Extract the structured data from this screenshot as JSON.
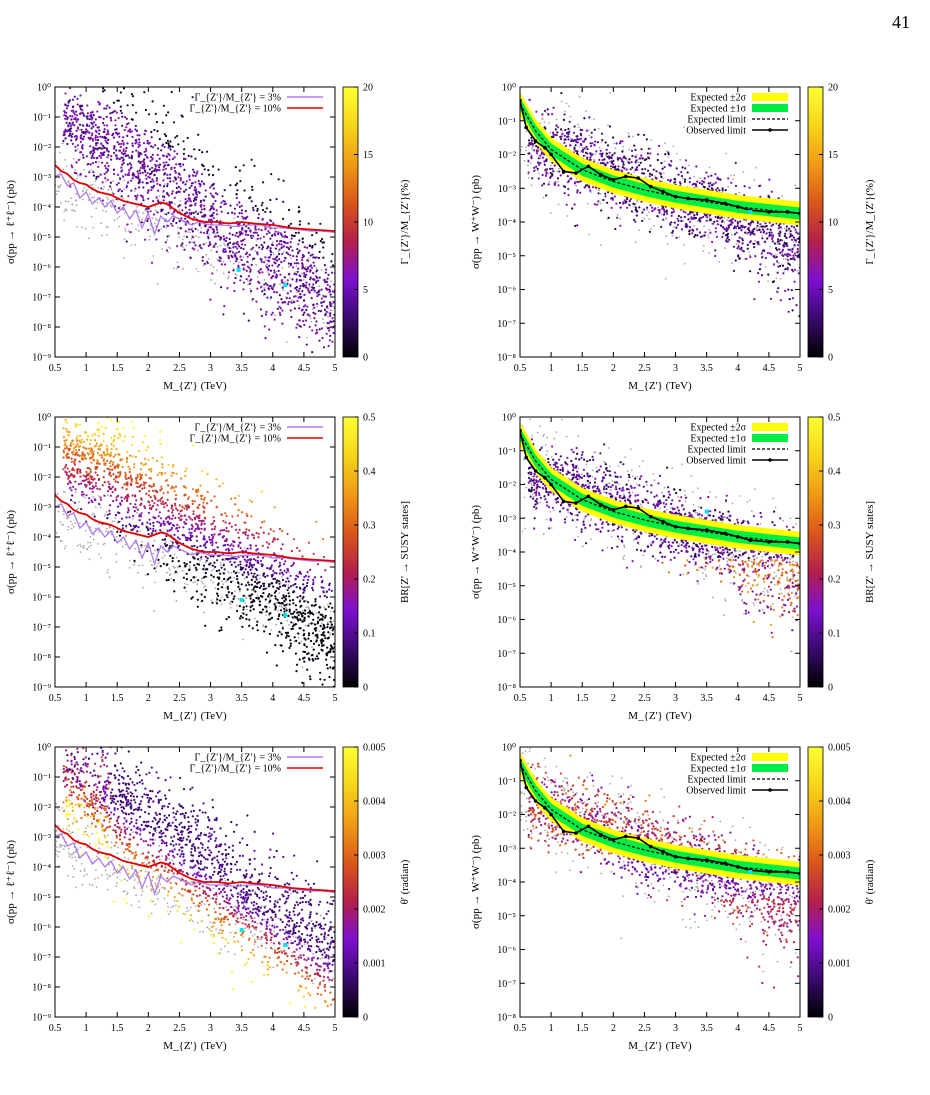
{
  "page": {
    "number": "41"
  },
  "colors": {
    "palette": [
      "#000000",
      "#3a0a6e",
      "#7d10d0",
      "#b4204a",
      "#d9571a",
      "#f09a16",
      "#f6d51b",
      "#ffff33"
    ],
    "grey": "#aaaaaa",
    "lilac": "#b07aef",
    "red": "#e00000",
    "yellow": "#ffff00",
    "green": "#00ee44",
    "cyan": "#00e5ee",
    "black": "#000000"
  },
  "chart_data": [
    {
      "id": "ll-width",
      "type": "scatter",
      "xlabel": "M_{Z'} (TeV)",
      "ylabel": "σ(pp → ℓ⁺ℓ⁻) (pb)",
      "xlim": [
        0.5,
        5
      ],
      "ylim_log10": [
        -9,
        0
      ],
      "xticks": [
        "0.5",
        "1",
        "1.5",
        "2",
        "2.5",
        "3",
        "3.5",
        "4",
        "4.5",
        "5"
      ],
      "yticks": [
        "10⁻⁹",
        "10⁻⁸",
        "10⁻⁷",
        "10⁻⁶",
        "10⁻⁵",
        "10⁻⁴",
        "10⁻³",
        "10⁻²",
        "10⁻¹",
        "10⁰"
      ],
      "colorbar": {
        "label": "Γ_{Z'}/M_{Z'}(%)",
        "ticks": [
          "0",
          "5",
          "10",
          "15",
          "20"
        ],
        "range": [
          0,
          20
        ]
      },
      "scatter_mode": "width_ll",
      "legend": [
        {
          "label": "Γ_{Z'}/M_{Z'} = 3%",
          "color": "#b07aef",
          "kind": "line"
        },
        {
          "label": "Γ_{Z'}/M_{Z'} = 10%",
          "color": "#e00000",
          "kind": "line"
        }
      ],
      "series": [
        {
          "name": "Γ_{Z'}/M_{Z'} = 3%",
          "color": "#b07aef",
          "x": [
            0.5,
            0.6,
            0.7,
            0.8,
            0.9,
            1.0,
            1.1,
            1.2,
            1.3,
            1.4,
            1.5,
            1.6,
            1.7,
            1.8,
            1.9,
            2.0,
            2.1,
            2.2,
            2.3,
            2.4,
            2.5,
            2.6,
            2.7,
            2.8,
            3.0,
            3.2,
            3.4,
            3.6,
            3.8,
            4.0,
            4.2,
            4.4,
            4.6,
            4.8,
            5.0
          ],
          "log10y": [
            -3.0,
            -2.9,
            -3.3,
            -3.2,
            -3.7,
            -3.5,
            -3.9,
            -3.7,
            -4.0,
            -3.8,
            -4.2,
            -4.0,
            -4.4,
            -4.1,
            -4.7,
            -4.2,
            -4.9,
            -4.3,
            -4.5,
            -4.3,
            -4.4,
            -4.5,
            -4.6,
            -4.5,
            -4.6,
            -4.6,
            -4.65,
            -4.6,
            -4.6,
            -4.7,
            -4.7,
            -4.75,
            -4.8,
            -4.8,
            -4.85
          ]
        },
        {
          "name": "Γ_{Z'}/M_{Z'} = 10%",
          "color": "#e00000",
          "x": [
            0.5,
            0.6,
            0.7,
            0.8,
            0.9,
            1.0,
            1.1,
            1.2,
            1.4,
            1.6,
            1.8,
            2.0,
            2.2,
            2.3,
            2.5,
            2.7,
            2.9,
            3.1,
            3.3,
            3.5,
            3.7,
            4.0,
            4.3,
            4.6,
            5.0
          ],
          "log10y": [
            -2.6,
            -2.8,
            -2.9,
            -3.1,
            -3.2,
            -3.25,
            -3.4,
            -3.5,
            -3.6,
            -3.8,
            -3.9,
            -4.0,
            -3.85,
            -3.9,
            -4.2,
            -4.4,
            -4.5,
            -4.5,
            -4.55,
            -4.5,
            -4.55,
            -4.6,
            -4.7,
            -4.75,
            -4.8
          ]
        }
      ],
      "markers": [
        {
          "x": 3.45,
          "log10y": -6.1
        },
        {
          "x": 4.2,
          "log10y": -6.6
        }
      ]
    },
    {
      "id": "ww-width",
      "type": "scatter",
      "xlabel": "M_{Z'} (TeV)",
      "ylabel": "σ(pp → W⁺W⁻) (pb)",
      "xlim": [
        0.5,
        5
      ],
      "ylim_log10": [
        -8,
        0
      ],
      "xticks": [
        "0.5",
        "1",
        "1.5",
        "2",
        "2.5",
        "3",
        "3.5",
        "4",
        "4.5",
        "5"
      ],
      "yticks": [
        "10⁻⁸",
        "10⁻⁷",
        "10⁻⁶",
        "10⁻⁵",
        "10⁻⁴",
        "10⁻³",
        "10⁻²",
        "10⁻¹",
        "10⁰"
      ],
      "colorbar": {
        "label": "Γ_{Z'}/M_{Z'}(%)",
        "ticks": [
          "0",
          "5",
          "10",
          "15",
          "20"
        ],
        "range": [
          0,
          20
        ]
      },
      "scatter_mode": "width_ww",
      "legend": [
        {
          "label": "Expected ±2σ",
          "color": "#ffff00",
          "kind": "box"
        },
        {
          "label": "Expected ±1σ",
          "color": "#00ee44",
          "kind": "box"
        },
        {
          "label": "Expected limit",
          "color": "#000000",
          "kind": "dash"
        },
        {
          "label": "Observed limit",
          "color": "#000000",
          "kind": "obs"
        }
      ],
      "observed": {
        "x": [
          0.5,
          0.6,
          0.75,
          0.9,
          1.0,
          1.2,
          1.4,
          1.6,
          1.8,
          2.0,
          2.2,
          2.4,
          2.6,
          2.8,
          3.0,
          3.2,
          3.5,
          3.8,
          4.0,
          4.2,
          4.5,
          4.8,
          5.0
        ],
        "log10y": [
          -0.4,
          -1.2,
          -1.6,
          -1.8,
          -2.0,
          -2.5,
          -2.55,
          -2.35,
          -2.6,
          -2.75,
          -2.65,
          -2.7,
          -2.95,
          -3.1,
          -3.25,
          -3.3,
          -3.35,
          -3.45,
          -3.55,
          -3.65,
          -3.7,
          -3.7,
          -3.75
        ]
      },
      "expected": {
        "x": [
          0.5,
          0.75,
          1.0,
          1.5,
          2.0,
          2.5,
          3.0,
          3.5,
          4.0,
          4.5,
          5.0
        ],
        "log10y": [
          -0.5,
          -1.3,
          -1.85,
          -2.45,
          -2.8,
          -3.05,
          -3.25,
          -3.4,
          -3.55,
          -3.65,
          -3.75
        ]
      },
      "markers": [
        {
          "x": 4.2,
          "log10y": -3.7
        }
      ]
    },
    {
      "id": "ll-br",
      "type": "scatter",
      "xlabel": "M_{Z'} (TeV)",
      "ylabel": "σ(pp → ℓ⁺ℓ⁻) (pb)",
      "xlim": [
        0.5,
        5
      ],
      "ylim_log10": [
        -9,
        0
      ],
      "xticks": [
        "0.5",
        "1",
        "1.5",
        "2",
        "2.5",
        "3",
        "3.5",
        "4",
        "4.5",
        "5"
      ],
      "yticks": [
        "10⁻⁹",
        "10⁻⁸",
        "10⁻⁷",
        "10⁻⁶",
        "10⁻⁵",
        "10⁻⁴",
        "10⁻³",
        "10⁻²",
        "10⁻¹",
        "10⁰"
      ],
      "colorbar": {
        "label": "BR[Z' → SUSY states]",
        "ticks": [
          "0",
          "0.1",
          "0.2",
          "0.3",
          "0.4",
          "0.5"
        ],
        "range": [
          0,
          0.5
        ]
      },
      "scatter_mode": "br_ll",
      "legend": [
        {
          "label": "Γ_{Z'}/M_{Z'} = 3%",
          "color": "#b07aef",
          "kind": "line"
        },
        {
          "label": "Γ_{Z'}/M_{Z'} = 10%",
          "color": "#e00000",
          "kind": "line"
        }
      ],
      "series": [
        {
          "name": "Γ_{Z'}/M_{Z'} = 3%",
          "color": "#b07aef",
          "x": [
            0.5,
            0.6,
            0.7,
            0.8,
            0.9,
            1.0,
            1.1,
            1.2,
            1.3,
            1.4,
            1.5,
            1.6,
            1.7,
            1.8,
            1.9,
            2.0,
            2.1,
            2.2,
            2.3,
            2.4,
            2.5,
            2.6,
            2.7,
            2.8,
            3.0,
            3.2,
            3.4,
            3.6,
            3.8,
            4.0,
            4.2,
            4.4,
            4.6,
            4.8,
            5.0
          ],
          "log10y": [
            -3.0,
            -2.9,
            -3.3,
            -3.2,
            -3.7,
            -3.5,
            -3.9,
            -3.7,
            -4.0,
            -3.8,
            -4.2,
            -4.0,
            -4.4,
            -4.1,
            -4.7,
            -4.2,
            -4.9,
            -4.3,
            -4.5,
            -4.3,
            -4.4,
            -4.5,
            -4.6,
            -4.5,
            -4.6,
            -4.6,
            -4.65,
            -4.6,
            -4.6,
            -4.7,
            -4.7,
            -4.75,
            -4.8,
            -4.8,
            -4.85
          ]
        },
        {
          "name": "Γ_{Z'}/M_{Z'} = 10%",
          "color": "#e00000",
          "x": [
            0.5,
            0.6,
            0.7,
            0.8,
            0.9,
            1.0,
            1.1,
            1.2,
            1.4,
            1.6,
            1.8,
            2.0,
            2.2,
            2.3,
            2.5,
            2.7,
            2.9,
            3.1,
            3.3,
            3.5,
            3.7,
            4.0,
            4.3,
            4.6,
            5.0
          ],
          "log10y": [
            -2.6,
            -2.8,
            -2.9,
            -3.1,
            -3.2,
            -3.25,
            -3.4,
            -3.5,
            -3.6,
            -3.8,
            -3.9,
            -4.0,
            -3.85,
            -3.9,
            -4.2,
            -4.4,
            -4.5,
            -4.5,
            -4.55,
            -4.5,
            -4.55,
            -4.6,
            -4.7,
            -4.75,
            -4.8
          ]
        }
      ],
      "markers": [
        {
          "x": 3.5,
          "log10y": -6.1
        },
        {
          "x": 4.2,
          "log10y": -6.6
        }
      ]
    },
    {
      "id": "ww-br",
      "type": "scatter",
      "xlabel": "M_{Z'} (TeV)",
      "ylabel": "σ(pp → W⁺W⁻) (pb)",
      "xlim": [
        0.5,
        5
      ],
      "ylim_log10": [
        -8,
        0
      ],
      "xticks": [
        "0.5",
        "1",
        "1.5",
        "2",
        "2.5",
        "3",
        "3.5",
        "4",
        "4.5",
        "5"
      ],
      "yticks": [
        "10⁻⁸",
        "10⁻⁷",
        "10⁻⁶",
        "10⁻⁵",
        "10⁻⁴",
        "10⁻³",
        "10⁻²",
        "10⁻¹",
        "10⁰"
      ],
      "colorbar": {
        "label": "BR[Z' → SUSY states]",
        "ticks": [
          "0",
          "0.1",
          "0.2",
          "0.3",
          "0.4",
          "0.5"
        ],
        "range": [
          0,
          0.5
        ]
      },
      "scatter_mode": "br_ww",
      "legend": [
        {
          "label": "Expected ±2σ",
          "color": "#ffff00",
          "kind": "box"
        },
        {
          "label": "Expected ±1σ",
          "color": "#00ee44",
          "kind": "box"
        },
        {
          "label": "Expected limit",
          "color": "#000000",
          "kind": "dash"
        },
        {
          "label": "Observed limit",
          "color": "#000000",
          "kind": "obs"
        }
      ],
      "observed": {
        "x": [
          0.5,
          0.6,
          0.75,
          0.9,
          1.0,
          1.2,
          1.4,
          1.6,
          1.8,
          2.0,
          2.2,
          2.4,
          2.6,
          2.8,
          3.0,
          3.2,
          3.5,
          3.8,
          4.0,
          4.2,
          4.5,
          4.8,
          5.0
        ],
        "log10y": [
          -0.4,
          -1.2,
          -1.6,
          -1.8,
          -2.0,
          -2.5,
          -2.55,
          -2.35,
          -2.6,
          -2.75,
          -2.65,
          -2.7,
          -2.95,
          -3.1,
          -3.25,
          -3.3,
          -3.35,
          -3.45,
          -3.55,
          -3.65,
          -3.7,
          -3.7,
          -3.75
        ]
      },
      "expected": {
        "x": [
          0.5,
          0.75,
          1.0,
          1.5,
          2.0,
          2.5,
          3.0,
          3.5,
          4.0,
          4.5,
          5.0
        ],
        "log10y": [
          -0.5,
          -1.3,
          -1.85,
          -2.45,
          -2.8,
          -3.05,
          -3.25,
          -3.4,
          -3.55,
          -3.65,
          -3.75
        ]
      },
      "markers": [
        {
          "x": 3.5,
          "log10y": -2.8
        }
      ]
    },
    {
      "id": "ll-theta",
      "type": "scatter",
      "xlabel": "M_{Z'} (TeV)",
      "ylabel": "σ(pp → ℓ⁺ℓ⁻) (pb)",
      "xlim": [
        0.5,
        5
      ],
      "ylim_log10": [
        -9,
        0
      ],
      "xticks": [
        "0.5",
        "1",
        "1.5",
        "2",
        "2.5",
        "3",
        "3.5",
        "4",
        "4.5",
        "5"
      ],
      "yticks": [
        "10⁻⁹",
        "10⁻⁸",
        "10⁻⁷",
        "10⁻⁶",
        "10⁻⁵",
        "10⁻⁴",
        "10⁻³",
        "10⁻²",
        "10⁻¹",
        "10⁰"
      ],
      "colorbar": {
        "label": "θ' (radian)",
        "ticks": [
          "0",
          "0.001",
          "0.002",
          "0.003",
          "0.004",
          "0.005"
        ],
        "range": [
          0,
          0.005
        ]
      },
      "scatter_mode": "theta_ll",
      "legend": [
        {
          "label": "Γ_{Z'}/M_{Z'} = 3%",
          "color": "#b07aef",
          "kind": "line"
        },
        {
          "label": "Γ_{Z'}/M_{Z'} = 10%",
          "color": "#e00000",
          "kind": "line"
        }
      ],
      "series": [
        {
          "name": "Γ_{Z'}/M_{Z'} = 3%",
          "color": "#b07aef",
          "x": [
            0.5,
            0.6,
            0.7,
            0.8,
            0.9,
            1.0,
            1.1,
            1.2,
            1.3,
            1.4,
            1.5,
            1.6,
            1.7,
            1.8,
            1.9,
            2.0,
            2.1,
            2.2,
            2.3,
            2.4,
            2.5,
            2.6,
            2.7,
            2.8,
            3.0,
            3.2,
            3.4,
            3.6,
            3.8,
            4.0,
            4.2,
            4.4,
            4.6,
            4.8,
            5.0
          ],
          "log10y": [
            -3.0,
            -2.9,
            -3.3,
            -3.2,
            -3.7,
            -3.5,
            -3.9,
            -3.7,
            -4.0,
            -3.8,
            -4.2,
            -4.0,
            -4.4,
            -4.1,
            -4.7,
            -4.2,
            -4.9,
            -4.3,
            -4.5,
            -4.3,
            -4.4,
            -4.5,
            -4.6,
            -4.5,
            -4.6,
            -4.6,
            -4.65,
            -4.6,
            -4.6,
            -4.7,
            -4.7,
            -4.75,
            -4.8,
            -4.8,
            -4.85
          ]
        },
        {
          "name": "Γ_{Z'}/M_{Z'} = 10%",
          "color": "#e00000",
          "x": [
            0.5,
            0.6,
            0.7,
            0.8,
            0.9,
            1.0,
            1.1,
            1.2,
            1.4,
            1.6,
            1.8,
            2.0,
            2.2,
            2.3,
            2.5,
            2.7,
            2.9,
            3.1,
            3.3,
            3.5,
            3.7,
            4.0,
            4.3,
            4.6,
            5.0
          ],
          "log10y": [
            -2.6,
            -2.8,
            -2.9,
            -3.1,
            -3.2,
            -3.25,
            -3.4,
            -3.5,
            -3.6,
            -3.8,
            -3.9,
            -4.0,
            -3.85,
            -3.9,
            -4.2,
            -4.4,
            -4.5,
            -4.5,
            -4.55,
            -4.5,
            -4.55,
            -4.6,
            -4.7,
            -4.75,
            -4.8
          ]
        }
      ],
      "markers": [
        {
          "x": 3.5,
          "log10y": -6.1
        },
        {
          "x": 4.2,
          "log10y": -6.6
        }
      ]
    },
    {
      "id": "ww-theta",
      "type": "scatter",
      "xlabel": "M_{Z'} (TeV)",
      "ylabel": "σ(pp → W⁺W⁻) (pb)",
      "xlim": [
        0.5,
        5
      ],
      "ylim_log10": [
        -8,
        0
      ],
      "xticks": [
        "0.5",
        "1",
        "1.5",
        "2",
        "2.5",
        "3",
        "3.5",
        "4",
        "4.5",
        "5"
      ],
      "yticks": [
        "10⁻⁸",
        "10⁻⁷",
        "10⁻⁶",
        "10⁻⁵",
        "10⁻⁴",
        "10⁻³",
        "10⁻²",
        "10⁻¹",
        "10⁰"
      ],
      "colorbar": {
        "label": "θ' (radian)",
        "ticks": [
          "0",
          "0.001",
          "0.002",
          "0.003",
          "0.004",
          "0.005"
        ],
        "range": [
          0,
          0.005
        ]
      },
      "scatter_mode": "theta_ww",
      "legend": [
        {
          "label": "Expected ±2σ",
          "color": "#ffff00",
          "kind": "box"
        },
        {
          "label": "Expected ±1σ",
          "color": "#00ee44",
          "kind": "box"
        },
        {
          "label": "Expected limit",
          "color": "#000000",
          "kind": "dash"
        },
        {
          "label": "Observed limit",
          "color": "#000000",
          "kind": "obs"
        }
      ],
      "observed": {
        "x": [
          0.5,
          0.6,
          0.75,
          0.9,
          1.0,
          1.2,
          1.4,
          1.6,
          1.8,
          2.0,
          2.2,
          2.4,
          2.6,
          2.8,
          3.0,
          3.2,
          3.5,
          3.8,
          4.0,
          4.2,
          4.5,
          4.8,
          5.0
        ],
        "log10y": [
          -0.4,
          -1.2,
          -1.6,
          -1.8,
          -2.0,
          -2.5,
          -2.55,
          -2.35,
          -2.6,
          -2.75,
          -2.65,
          -2.7,
          -2.95,
          -3.1,
          -3.25,
          -3.3,
          -3.35,
          -3.45,
          -3.55,
          -3.65,
          -3.7,
          -3.7,
          -3.75
        ]
      },
      "expected": {
        "x": [
          0.5,
          0.75,
          1.0,
          1.5,
          2.0,
          2.5,
          3.0,
          3.5,
          4.0,
          4.5,
          5.0
        ],
        "log10y": [
          -0.5,
          -1.3,
          -1.85,
          -2.45,
          -2.8,
          -3.05,
          -3.25,
          -3.4,
          -3.55,
          -3.65,
          -3.75
        ]
      },
      "markers": [
        {
          "x": 4.2,
          "log10y": -3.7
        }
      ]
    }
  ]
}
